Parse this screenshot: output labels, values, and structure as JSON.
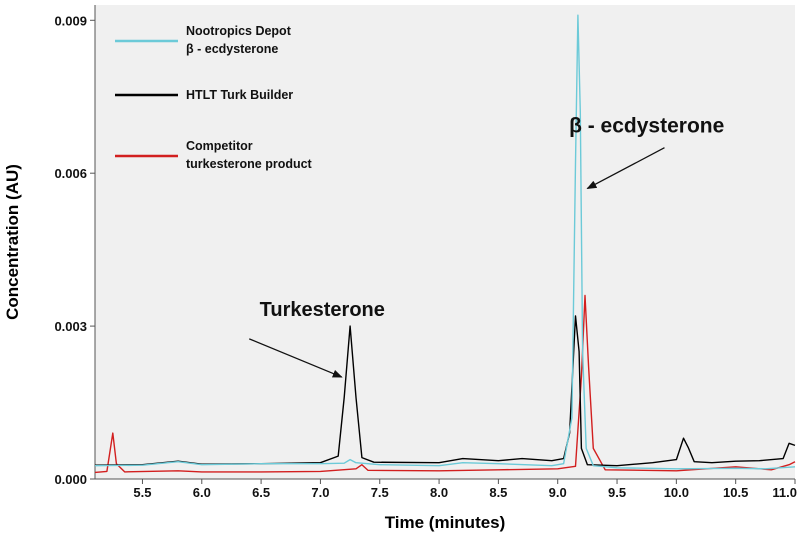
{
  "chart_data": {
    "type": "line",
    "xlabel": "Time (minutes)",
    "ylabel": "Concentration (AU)",
    "xlim": [
      5.1,
      11.0
    ],
    "ylim": [
      0.0,
      0.0093
    ],
    "x_ticks": [
      "5.5",
      "6.0",
      "6.5",
      "7.0",
      "7.5",
      "8.0",
      "8.5",
      "9.0",
      "9.5",
      "10.0",
      "10.5",
      "11.0"
    ],
    "x_tick_values": [
      5.5,
      6.0,
      6.5,
      7.0,
      7.5,
      8.0,
      8.5,
      9.0,
      9.5,
      10.0,
      10.5,
      11.0
    ],
    "y_ticks": [
      "0.000",
      "0.003",
      "0.006",
      "0.009"
    ],
    "y_tick_values": [
      0.0,
      0.003,
      0.006,
      0.009
    ],
    "plot_background": "#f0f0f0",
    "legend_position": "top-left",
    "series": [
      {
        "name": "Nootropics Depot\nβ - ecdysterone",
        "legend_lines": [
          "Nootropics Depot",
          "β - ecdysterone"
        ],
        "color": "#6ccad8",
        "points": [
          [
            5.1,
            0.00026
          ],
          [
            5.5,
            0.00027
          ],
          [
            5.8,
            0.00034
          ],
          [
            6.0,
            0.00028
          ],
          [
            6.5,
            0.0003
          ],
          [
            7.0,
            0.0003
          ],
          [
            7.2,
            0.00031
          ],
          [
            7.25,
            0.00038
          ],
          [
            7.3,
            0.00032
          ],
          [
            7.5,
            0.00028
          ],
          [
            8.0,
            0.00026
          ],
          [
            8.2,
            0.00032
          ],
          [
            8.5,
            0.0003
          ],
          [
            8.95,
            0.00026
          ],
          [
            9.05,
            0.0003
          ],
          [
            9.12,
            0.0012
          ],
          [
            9.15,
            0.0062
          ],
          [
            9.17,
            0.0091
          ],
          [
            9.19,
            0.0072
          ],
          [
            9.21,
            0.0025
          ],
          [
            9.24,
            0.0006
          ],
          [
            9.3,
            0.00026
          ],
          [
            9.5,
            0.00022
          ],
          [
            10.0,
            0.0002
          ],
          [
            10.5,
            0.00021
          ],
          [
            10.75,
            0.0002
          ],
          [
            11.0,
            0.00024
          ]
        ]
      },
      {
        "name": "HTLT Turk Builder",
        "legend_lines": [
          "HTLT Turk Builder"
        ],
        "color": "#000000",
        "points": [
          [
            5.1,
            0.00027
          ],
          [
            5.5,
            0.00028
          ],
          [
            5.8,
            0.00035
          ],
          [
            6.0,
            0.00029
          ],
          [
            6.5,
            0.0003
          ],
          [
            7.0,
            0.00032
          ],
          [
            7.15,
            0.00045
          ],
          [
            7.2,
            0.0016
          ],
          [
            7.25,
            0.003
          ],
          [
            7.3,
            0.0016
          ],
          [
            7.35,
            0.00042
          ],
          [
            7.45,
            0.00033
          ],
          [
            8.0,
            0.00032
          ],
          [
            8.2,
            0.0004
          ],
          [
            8.5,
            0.00036
          ],
          [
            8.7,
            0.0004
          ],
          [
            8.95,
            0.00036
          ],
          [
            9.05,
            0.0004
          ],
          [
            9.1,
            0.0009
          ],
          [
            9.15,
            0.0032
          ],
          [
            9.18,
            0.0025
          ],
          [
            9.2,
            0.0006
          ],
          [
            9.25,
            0.00028
          ],
          [
            9.5,
            0.00026
          ],
          [
            9.8,
            0.00032
          ],
          [
            10.0,
            0.00038
          ],
          [
            10.06,
            0.0008
          ],
          [
            10.1,
            0.00062
          ],
          [
            10.15,
            0.00034
          ],
          [
            10.3,
            0.00032
          ],
          [
            10.5,
            0.00035
          ],
          [
            10.7,
            0.00036
          ],
          [
            10.9,
            0.0004
          ],
          [
            10.95,
            0.0007
          ],
          [
            11.0,
            0.00066
          ]
        ]
      },
      {
        "name": "Competitor\nturkesterone product",
        "legend_lines": [
          "Competitor",
          "turkesterone product"
        ],
        "color": "#d21f1f",
        "points": [
          [
            5.1,
            0.00013
          ],
          [
            5.2,
            0.00015
          ],
          [
            5.25,
            0.0009
          ],
          [
            5.28,
            0.0003
          ],
          [
            5.35,
            0.00014
          ],
          [
            5.8,
            0.00016
          ],
          [
            6.0,
            0.00014
          ],
          [
            6.5,
            0.00014
          ],
          [
            7.0,
            0.00015
          ],
          [
            7.3,
            0.0002
          ],
          [
            7.35,
            0.00028
          ],
          [
            7.4,
            0.00017
          ],
          [
            8.0,
            0.00016
          ],
          [
            8.5,
            0.00018
          ],
          [
            9.0,
            0.0002
          ],
          [
            9.15,
            0.00025
          ],
          [
            9.2,
            0.002
          ],
          [
            9.23,
            0.0036
          ],
          [
            9.26,
            0.0022
          ],
          [
            9.3,
            0.0006
          ],
          [
            9.4,
            0.00018
          ],
          [
            10.0,
            0.00016
          ],
          [
            10.5,
            0.00024
          ],
          [
            10.8,
            0.00018
          ],
          [
            10.95,
            0.00028
          ],
          [
            11.0,
            0.00034
          ]
        ]
      }
    ],
    "annotations": [
      {
        "text": "Turkesterone",
        "label_at": [
          7.1,
          0.0032
        ],
        "arrow_to": [
          7.18,
          0.002
        ],
        "arrow_from": [
          6.4,
          0.00275
        ]
      },
      {
        "text": "β - ecdysterone",
        "label_at": [
          9.75,
          0.0068
        ],
        "arrow_to": [
          9.25,
          0.0057
        ],
        "arrow_from": [
          9.9,
          0.0065
        ]
      }
    ]
  }
}
